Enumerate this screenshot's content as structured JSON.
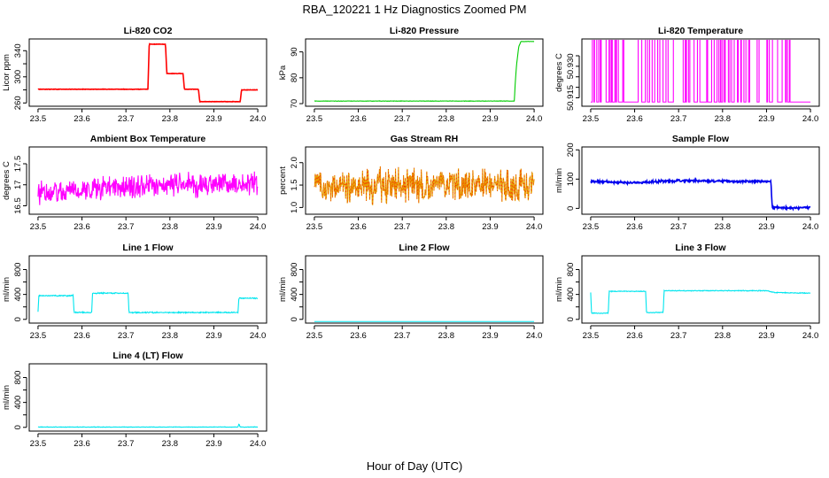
{
  "figure": {
    "title": "RBA_120221  1 Hz Diagnostics Zoomed PM",
    "xlabel": "Hour of Day (UTC)"
  },
  "chart_data": [
    {
      "id": "co2",
      "type": "line",
      "title": "Li-820 CO2",
      "ylabel": "Licor ppm",
      "color": "#ff0000",
      "xlim": [
        23.48,
        24.02
      ],
      "ylim": [
        255,
        358
      ],
      "xticks": [
        "23.5",
        "23.6",
        "23.7",
        "23.8",
        "23.9",
        "24.0"
      ],
      "yticks": [
        260,
        280,
        300,
        320,
        340
      ],
      "ytick_labels": [
        "260",
        "",
        "300",
        "",
        "340"
      ],
      "noise": 0.4,
      "series": [
        [
          23.5,
          281
        ],
        [
          23.75,
          281
        ],
        [
          23.753,
          350
        ],
        [
          23.79,
          350
        ],
        [
          23.793,
          305
        ],
        [
          23.83,
          305
        ],
        [
          23.833,
          281
        ],
        [
          23.865,
          281
        ],
        [
          23.868,
          262
        ],
        [
          23.96,
          262
        ],
        [
          23.963,
          280
        ],
        [
          24.0,
          280
        ]
      ]
    },
    {
      "id": "pressure",
      "type": "line",
      "title": "Li-820 Pressure",
      "ylabel": "kPa",
      "color": "#00cc00",
      "xlim": [
        23.48,
        24.02
      ],
      "ylim": [
        69,
        95
      ],
      "xticks": [
        "23.5",
        "23.6",
        "23.7",
        "23.8",
        "23.9",
        "24.0"
      ],
      "yticks": [
        70,
        80,
        90
      ],
      "ytick_labels": [
        "70",
        "80",
        "90"
      ],
      "noise": 0.1,
      "series": [
        [
          23.5,
          71
        ],
        [
          23.94,
          71
        ],
        [
          23.955,
          71
        ],
        [
          23.957,
          78
        ],
        [
          23.96,
          85
        ],
        [
          23.965,
          92
        ],
        [
          23.97,
          94
        ],
        [
          23.99,
          94
        ],
        [
          24.0,
          94
        ]
      ]
    },
    {
      "id": "licor_temp",
      "type": "line",
      "title": "Li-820 Temperature",
      "ylabel": "degrees C",
      "color": "#ff00ff",
      "xlim": [
        23.48,
        24.02
      ],
      "ylim": [
        50.911,
        50.943
      ],
      "xticks": [
        "23.5",
        "23.6",
        "23.7",
        "23.8",
        "23.9",
        "24.0"
      ],
      "yticks": [
        50.915,
        50.92,
        50.925,
        50.93,
        50.935
      ],
      "ytick_labels": [
        "50.915",
        "",
        "",
        "50.930",
        ""
      ],
      "noise": 0,
      "switching": {
        "low": 50.913,
        "high": 50.943,
        "x0": 23.5,
        "x1": 24.0,
        "active_until": 23.96,
        "segments": 130,
        "seed": 7
      }
    },
    {
      "id": "box_temp",
      "type": "line",
      "title": "Ambient Box Temperature",
      "ylabel": "degrees C",
      "color": "#ff00ff",
      "xlim": [
        23.48,
        24.02
      ],
      "ylim": [
        16.3,
        17.9
      ],
      "xticks": [
        "23.5",
        "23.6",
        "23.7",
        "23.8",
        "23.9",
        "24.0"
      ],
      "yticks": [
        16.5,
        17.0,
        17.5
      ],
      "ytick_labels": [
        "16.5",
        "17",
        "17.5"
      ],
      "noise": 0.35,
      "series": [
        [
          23.5,
          16.8
        ],
        [
          23.6,
          16.9
        ],
        [
          23.7,
          16.95
        ],
        [
          23.8,
          17.0
        ],
        [
          23.9,
          17.0
        ],
        [
          24.0,
          17.0
        ]
      ]
    },
    {
      "id": "gas_rh",
      "type": "line",
      "title": "Gas Stream RH",
      "ylabel": "percent",
      "color": "#e6a000",
      "accent": "#ff0000",
      "xlim": [
        23.48,
        24.02
      ],
      "ylim": [
        0.85,
        2.35
      ],
      "xticks": [
        "23.5",
        "23.6",
        "23.7",
        "23.8",
        "23.9",
        "24.0"
      ],
      "yticks": [
        1.0,
        1.5,
        2.0
      ],
      "ytick_labels": [
        "1.0",
        "1.5",
        "2.0"
      ],
      "noise": 0.45,
      "series": [
        [
          23.5,
          1.5
        ],
        [
          24.0,
          1.5
        ]
      ]
    },
    {
      "id": "sample_flow",
      "type": "line",
      "title": "Sample Flow",
      "ylabel": "ml/min",
      "color": "#0000ee",
      "xlim": [
        23.48,
        24.02
      ],
      "ylim": [
        -20,
        210
      ],
      "xticks": [
        "23.5",
        "23.6",
        "23.7",
        "23.8",
        "23.9",
        "24.0"
      ],
      "yticks": [
        0,
        100,
        200
      ],
      "ytick_labels": [
        "0",
        "100",
        "200"
      ],
      "noise": 5,
      "series": [
        [
          23.5,
          92
        ],
        [
          23.6,
          88
        ],
        [
          23.7,
          95
        ],
        [
          23.8,
          93
        ],
        [
          23.91,
          92
        ],
        [
          23.913,
          2
        ],
        [
          24.0,
          2
        ]
      ]
    },
    {
      "id": "line1",
      "type": "line",
      "title": "Line 1 Flow",
      "ylabel": "ml/min",
      "color": "#00e5ee",
      "xlim": [
        23.48,
        24.02
      ],
      "ylim": [
        -60,
        1020
      ],
      "xticks": [
        "23.5",
        "23.6",
        "23.7",
        "23.8",
        "23.9",
        "24.0"
      ],
      "yticks": [
        0,
        200,
        400,
        600,
        800
      ],
      "ytick_labels": [
        "0",
        "",
        "400",
        "",
        "800"
      ],
      "noise": 12,
      "series": [
        [
          23.5,
          120
        ],
        [
          23.502,
          380
        ],
        [
          23.58,
          380
        ],
        [
          23.582,
          110
        ],
        [
          23.622,
          110
        ],
        [
          23.624,
          420
        ],
        [
          23.705,
          420
        ],
        [
          23.707,
          110
        ],
        [
          23.955,
          110
        ],
        [
          23.957,
          340
        ],
        [
          24.0,
          340
        ]
      ]
    },
    {
      "id": "line2",
      "type": "line",
      "title": "Line 2 Flow",
      "ylabel": "ml/min",
      "color": "#00e5ee",
      "xlim": [
        23.48,
        24.02
      ],
      "ylim": [
        -60,
        1020
      ],
      "xticks": [
        "23.5",
        "23.6",
        "23.7",
        "23.8",
        "23.9",
        "24.0"
      ],
      "yticks": [
        0,
        200,
        400,
        600,
        800
      ],
      "ytick_labels": [
        "0",
        "",
        "400",
        "",
        "800"
      ],
      "noise": 0,
      "series": [
        [
          23.5,
          -35
        ],
        [
          24.0,
          -35
        ]
      ]
    },
    {
      "id": "line3",
      "type": "line",
      "title": "Line 3 Flow",
      "ylabel": "ml/min",
      "color": "#00e5ee",
      "xlim": [
        23.48,
        24.02
      ],
      "ylim": [
        -60,
        1020
      ],
      "xticks": [
        "23.5",
        "23.6",
        "23.7",
        "23.8",
        "23.9",
        "24.0"
      ],
      "yticks": [
        0,
        200,
        400,
        600,
        800
      ],
      "ytick_labels": [
        "0",
        "",
        "400",
        "",
        "800"
      ],
      "noise": 8,
      "series": [
        [
          23.5,
          430
        ],
        [
          23.502,
          100
        ],
        [
          23.54,
          100
        ],
        [
          23.542,
          450
        ],
        [
          23.625,
          450
        ],
        [
          23.627,
          110
        ],
        [
          23.665,
          110
        ],
        [
          23.667,
          460
        ],
        [
          23.9,
          460
        ],
        [
          23.92,
          430
        ],
        [
          24.0,
          420
        ]
      ]
    },
    {
      "id": "line4",
      "type": "line",
      "title": "Line 4 (LT) Flow",
      "ylabel": "ml/min",
      "color": "#00e5ee",
      "xlim": [
        23.48,
        24.02
      ],
      "ylim": [
        -60,
        1020
      ],
      "xticks": [
        "23.5",
        "23.6",
        "23.7",
        "23.8",
        "23.9",
        "24.0"
      ],
      "yticks": [
        0,
        200,
        400,
        600,
        800
      ],
      "ytick_labels": [
        "0",
        "",
        "400",
        "",
        "800"
      ],
      "noise": 5,
      "series": [
        [
          23.5,
          5
        ],
        [
          23.955,
          5
        ],
        [
          23.957,
          60
        ],
        [
          23.96,
          5
        ],
        [
          24.0,
          5
        ]
      ]
    }
  ]
}
